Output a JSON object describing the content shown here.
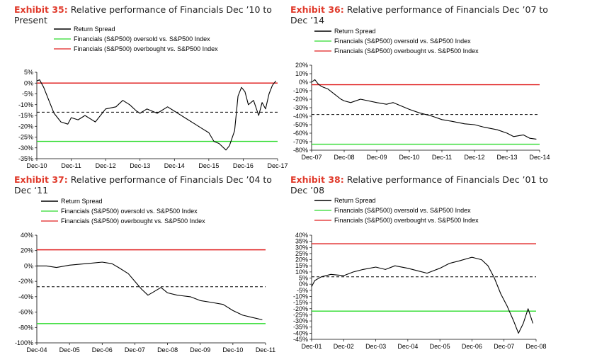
{
  "colors": {
    "exhibit": "#e03a2b",
    "spread": "#000000",
    "oversold": "#2ddb2d",
    "overbought": "#e02020",
    "avg": "#000000"
  },
  "legend_labels": {
    "spread": "Return Spread",
    "oversold": "Financials (S&P500) oversold vs. S&P500 Index",
    "overbought": "Financials (S&P500) overbought vs. S&P500 Index"
  },
  "chart_data": [
    {
      "type": "line",
      "exhibit": "Exhibit 35:",
      "title": "Relative performance of Financials Dec ’10 to Present",
      "x_ticks": [
        "Dec-10",
        "Dec-11",
        "Dec-12",
        "Dec-13",
        "Dec-14",
        "Dec-15",
        "Dec-16",
        "Dec-17"
      ],
      "y_ticks": [
        "5%",
        "0%",
        "-5%",
        "-10%",
        "-15%",
        "-20%",
        "-25%",
        "-30%",
        "-35%"
      ],
      "ylim": [
        -35,
        5
      ],
      "x_range": [
        0,
        7
      ],
      "overbought": 0,
      "oversold": -27,
      "average": -13.5,
      "series": [
        {
          "x": [
            0,
            0.08,
            0.2,
            0.35,
            0.5,
            0.7,
            0.9,
            1.0,
            1.2,
            1.4,
            1.7,
            2.0,
            2.3,
            2.5,
            2.7,
            2.9,
            3.0,
            3.2,
            3.5,
            3.8,
            4.0,
            4.3,
            4.6,
            4.8,
            5.0,
            5.15,
            5.3,
            5.5,
            5.6,
            5.75,
            5.85,
            5.95,
            6.05,
            6.15,
            6.3,
            6.45,
            6.55,
            6.65,
            6.75,
            6.85,
            6.95
          ],
          "y": [
            1,
            1.5,
            -2,
            -8,
            -14,
            -18,
            -19,
            -16,
            -17,
            -15,
            -18,
            -12,
            -11,
            -8,
            -10,
            -13,
            -14,
            -12,
            -14,
            -11,
            -13,
            -16,
            -19,
            -21,
            -23,
            -27,
            -28,
            -31,
            -29,
            -22,
            -6,
            -2,
            -4,
            -10,
            -8,
            -15,
            -9,
            -12,
            -5,
            -1,
            1
          ]
        }
      ]
    },
    {
      "type": "line",
      "exhibit": "Exhibit 36:",
      "title": "Relative performance of Financials Dec ’07 to Dec ’14",
      "x_ticks": [
        "Dec-07",
        "Dec-08",
        "Dec-09",
        "Dec-10",
        "Dec-11",
        "Dec-12",
        "Dec-13",
        "Dec-14"
      ],
      "y_ticks": [
        "20%",
        "10%",
        "0%",
        "-10%",
        "-20%",
        "-30%",
        "-40%",
        "-50%",
        "-60%",
        "-70%",
        "-80%"
      ],
      "ylim": [
        -80,
        20
      ],
      "x_range": [
        0,
        7
      ],
      "overbought": -3,
      "oversold": -73,
      "average": -38,
      "series": [
        {
          "x": [
            0,
            0.1,
            0.2,
            0.3,
            0.5,
            0.7,
            0.9,
            1.0,
            1.2,
            1.5,
            2.0,
            2.3,
            2.5,
            3.0,
            3.3,
            3.7,
            4.0,
            4.3,
            4.7,
            5.0,
            5.3,
            5.7,
            6.0,
            6.2,
            6.5,
            6.7,
            6.9
          ],
          "y": [
            0,
            3,
            -2,
            -5,
            -8,
            -14,
            -20,
            -22,
            -24,
            -20,
            -24,
            -26,
            -24,
            -32,
            -36,
            -40,
            -44,
            -46,
            -49,
            -50,
            -53,
            -56,
            -60,
            -64,
            -62,
            -66,
            -67
          ]
        }
      ]
    },
    {
      "type": "line",
      "exhibit": "Exhibit 37:",
      "title": "Relative performance of Financials Dec ’04 to Dec ‘11",
      "x_ticks": [
        "Dec-04",
        "Dec-05",
        "Dec-06",
        "Dec-07",
        "Dec-08",
        "Dec-09",
        "Dec-10",
        "Dec-11"
      ],
      "y_ticks": [
        "40%",
        "20%",
        "0%",
        "-20%",
        "-40%",
        "-60%",
        "-80%",
        "-100%"
      ],
      "ylim": [
        -100,
        40
      ],
      "x_range": [
        0,
        7
      ],
      "overbought": 21,
      "oversold": -75,
      "average": -27,
      "series": [
        {
          "x": [
            0,
            0.3,
            0.6,
            1.0,
            1.5,
            2.0,
            2.3,
            2.5,
            2.8,
            3.0,
            3.2,
            3.4,
            3.6,
            3.8,
            4.0,
            4.3,
            4.7,
            5.0,
            5.3,
            5.7,
            6.0,
            6.3,
            6.6,
            6.9
          ],
          "y": [
            0,
            0,
            -2,
            1,
            3,
            5,
            3,
            -2,
            -10,
            -20,
            -30,
            -38,
            -33,
            -28,
            -35,
            -38,
            -40,
            -45,
            -47,
            -50,
            -58,
            -64,
            -67,
            -70
          ]
        }
      ]
    },
    {
      "type": "line",
      "exhibit": "Exhibit 38:",
      "title": "Relative performance of Financials Dec ’01 to Dec ’08",
      "x_ticks": [
        "Dec-01",
        "Dec-02",
        "Dec-03",
        "Dec-04",
        "Dec-05",
        "Dec-06",
        "Dec-07",
        "Dec-08"
      ],
      "y_ticks": [
        "40%",
        "35%",
        "30%",
        "25%",
        "20%",
        "15%",
        "10%",
        "5%",
        "0%",
        "-5%",
        "-10%",
        "-15%",
        "-20%",
        "-25%",
        "-30%",
        "-35%",
        "-40%",
        "-45%"
      ],
      "ylim": [
        -45,
        40
      ],
      "x_range": [
        0,
        7
      ],
      "overbought": 33,
      "oversold": -22,
      "average": 6,
      "series": [
        {
          "x": [
            0,
            0.1,
            0.3,
            0.6,
            1.0,
            1.3,
            1.6,
            2.0,
            2.3,
            2.6,
            3.0,
            3.3,
            3.6,
            4.0,
            4.3,
            4.6,
            5.0,
            5.3,
            5.5,
            5.7,
            5.9,
            6.1,
            6.3,
            6.45,
            6.6,
            6.75,
            6.9
          ],
          "y": [
            -2,
            3,
            6,
            8,
            7,
            10,
            12,
            14,
            12,
            15,
            13,
            11,
            9,
            13,
            17,
            19,
            22,
            20,
            15,
            5,
            -8,
            -18,
            -30,
            -40,
            -32,
            -20,
            -32
          ]
        }
      ]
    }
  ]
}
